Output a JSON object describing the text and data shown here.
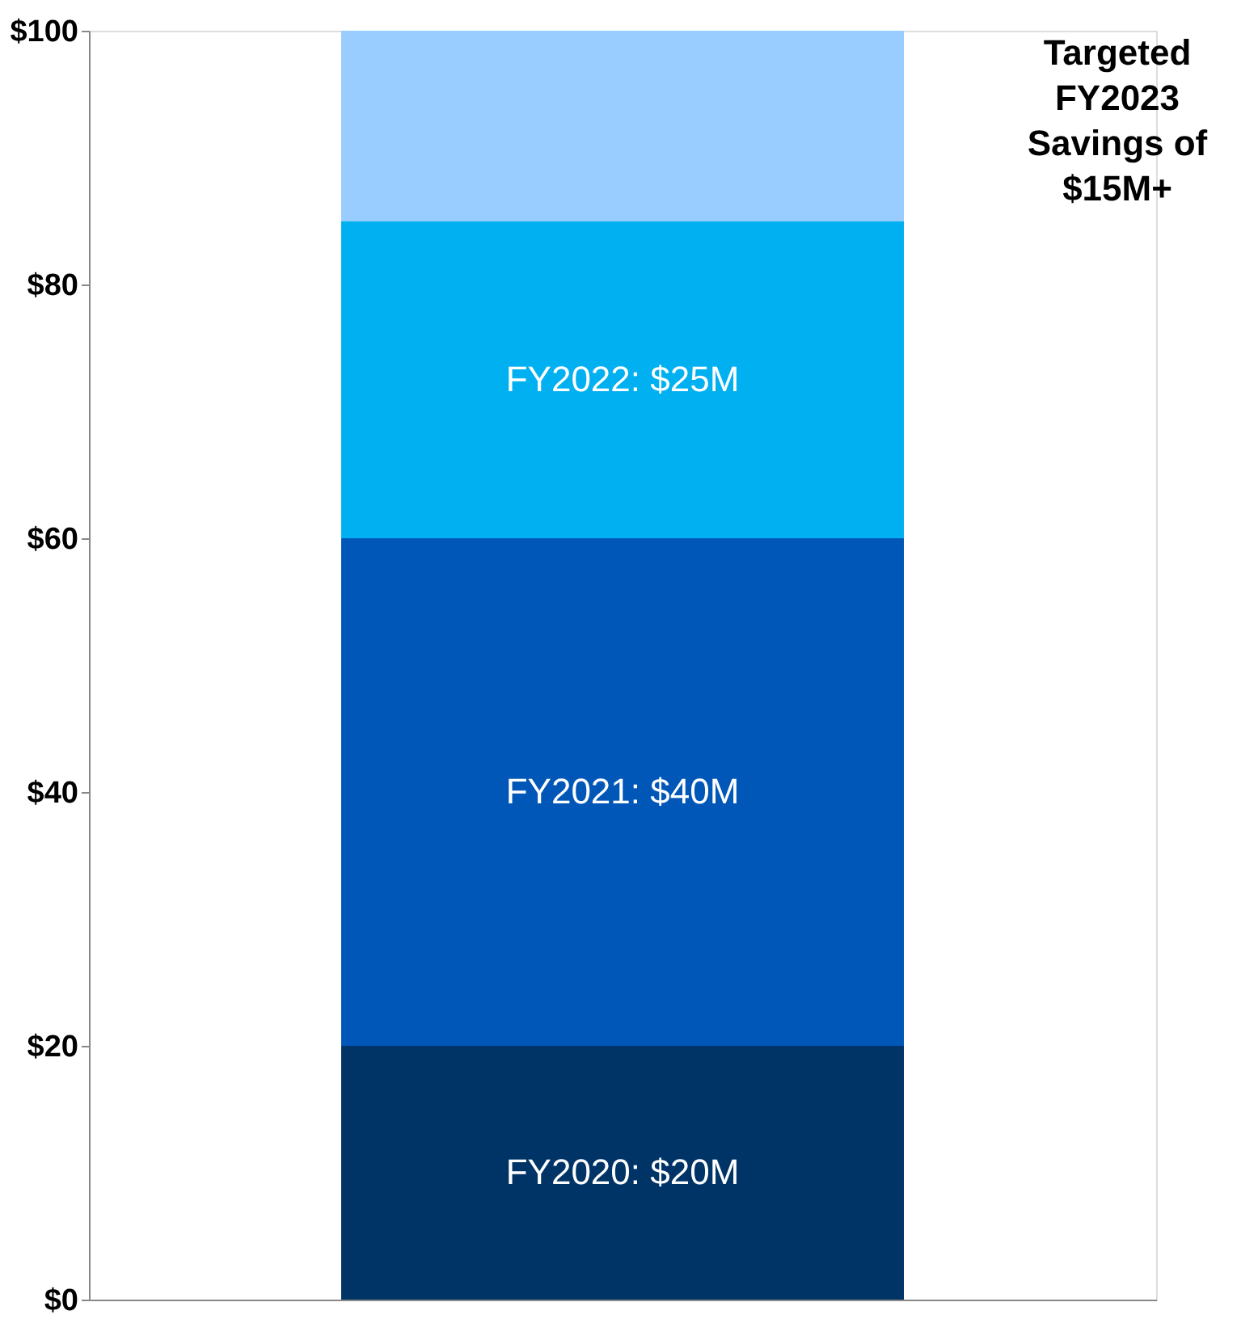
{
  "chart_data": {
    "type": "bar",
    "stacked": true,
    "categories": [
      null
    ],
    "series": [
      {
        "color": "#003366",
        "values": [
          20
        ],
        "value_labels": [
          "FY2020: $20M"
        ]
      },
      {
        "color": "#0057b8",
        "values": [
          40
        ],
        "value_labels": [
          "FY2021: $40M"
        ]
      },
      {
        "color": "#00b0f0",
        "values": [
          25
        ],
        "value_labels": [
          "FY2022: $25M"
        ]
      },
      {
        "color": "#99ccff",
        "values": [
          15
        ],
        "value_labels": [
          null
        ]
      }
    ],
    "ylim": [
      0,
      100
    ],
    "yticks": [
      {
        "value": 0,
        "label": "$0"
      },
      {
        "value": 20,
        "label": "$20"
      },
      {
        "value": 40,
        "label": "$40"
      },
      {
        "value": 60,
        "label": "$60"
      },
      {
        "value": 80,
        "label": "$80"
      },
      {
        "value": 100,
        "label": "$100"
      }
    ],
    "annotations": [
      "Targeted\nFY2023\nSavings of\n$15M+"
    ],
    "grid": false,
    "tick_labels": "y"
  }
}
